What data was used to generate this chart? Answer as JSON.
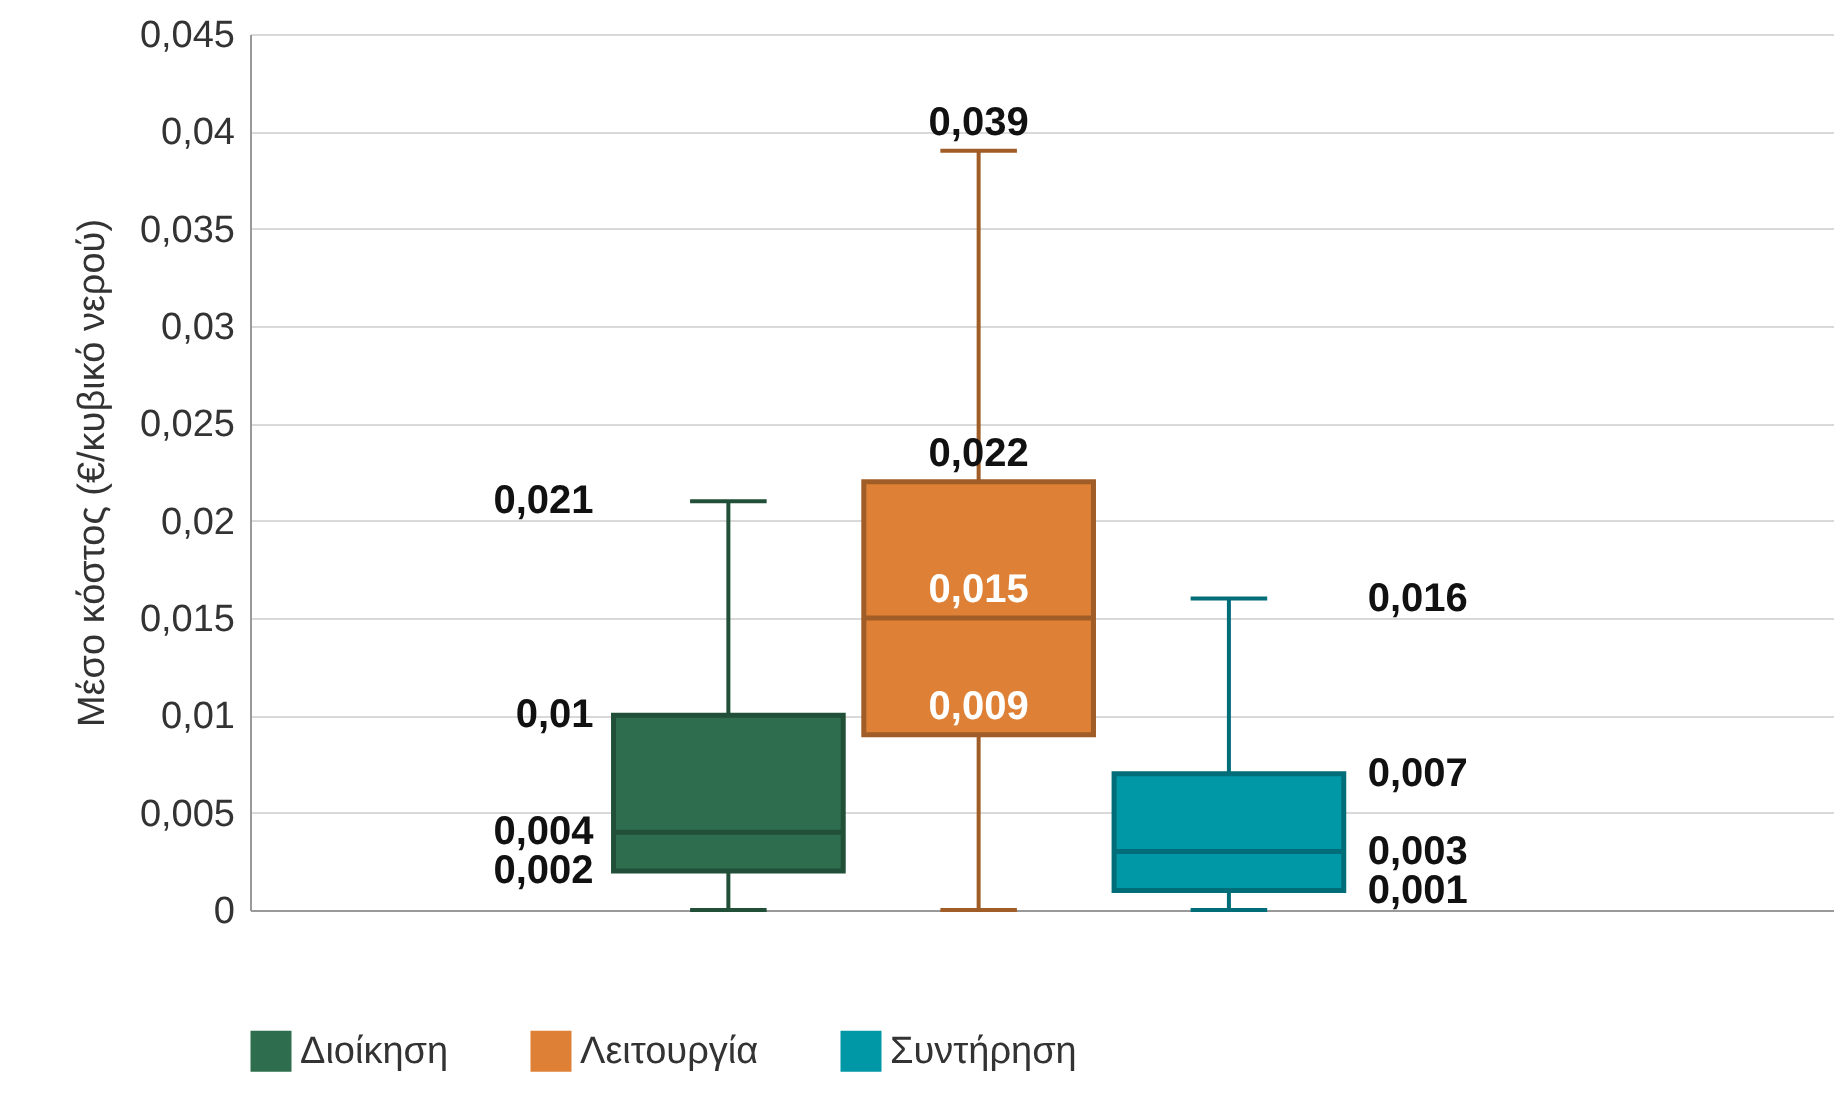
{
  "chart_data": {
    "type": "box",
    "ylabel": "Μέσο κόστος (€/κυβικό νερού)",
    "categories": [
      null
    ],
    "ylim": [
      0,
      0.045
    ],
    "yticks": [
      {
        "value": 0,
        "label": "0"
      },
      {
        "value": 0.005,
        "label": "0,005"
      },
      {
        "value": 0.01,
        "label": "0,01"
      },
      {
        "value": 0.015,
        "label": "0,015"
      },
      {
        "value": 0.02,
        "label": "0,02"
      },
      {
        "value": 0.025,
        "label": "0,025"
      },
      {
        "value": 0.03,
        "label": "0,03"
      },
      {
        "value": 0.035,
        "label": "0,035"
      },
      {
        "value": 0.04,
        "label": "0,04"
      },
      {
        "value": 0.045,
        "label": "0,045"
      }
    ],
    "grid": "y",
    "legend": "bottom",
    "series": [
      {
        "name": "Διοίκηση",
        "color": "#2e6e4e",
        "boxes": [
          {
            "low": 0,
            "q1": 0.002,
            "median": 0.004,
            "q3": 0.01,
            "high": 0.021
          }
        ],
        "value_labels": [
          {
            "high": "0,021",
            "q3": "0,01",
            "median": "0,004",
            "q1": "0,002"
          }
        ]
      },
      {
        "name": "Λειτουργία",
        "color": "#de8136",
        "boxes": [
          {
            "low": 0,
            "q1": 0.009,
            "median": 0.015,
            "q3": 0.022,
            "high": 0.039
          }
        ],
        "value_labels": [
          {
            "high": "0,039",
            "q3": "0,022",
            "median": "0,015",
            "q1": "0,009"
          }
        ]
      },
      {
        "name": "Συντήρηση",
        "color": "#0097a7",
        "boxes": [
          {
            "low": 0,
            "q1": 0.001,
            "median": 0.003,
            "q3": 0.007,
            "high": 0.016
          }
        ],
        "value_labels": [
          {
            "high": "0,016",
            "q3": "0,007",
            "median": "0,003",
            "q1": "0,001"
          }
        ]
      }
    ]
  }
}
